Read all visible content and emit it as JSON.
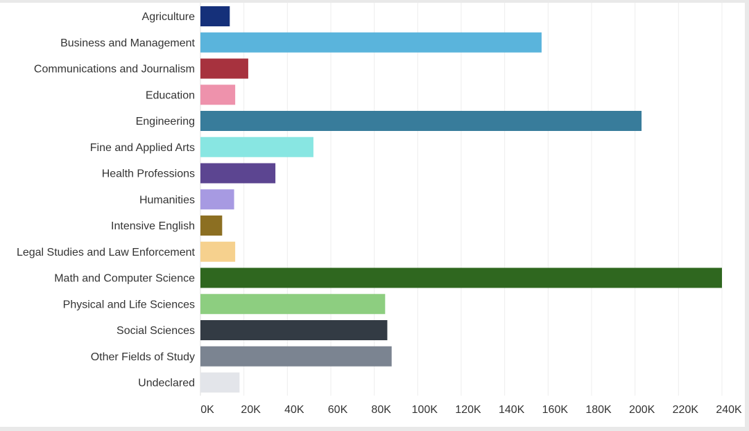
{
  "chart_data": {
    "type": "bar",
    "orientation": "horizontal",
    "title": "",
    "xlabel": "",
    "ylabel": "",
    "xlim": [
      0,
      250000
    ],
    "grid": "vertical",
    "legend": "none",
    "x_ticks": [
      "0K",
      "20K",
      "40K",
      "60K",
      "80K",
      "100K",
      "120K",
      "140K",
      "160K",
      "180K",
      "200K",
      "220K",
      "240K"
    ],
    "x_tick_values": [
      0,
      20000,
      40000,
      60000,
      80000,
      100000,
      120000,
      140000,
      160000,
      180000,
      200000,
      220000,
      240000
    ],
    "categories": [
      "Agriculture",
      "Business and Management",
      "Communications and Journalism",
      "Education",
      "Engineering",
      "Fine and Applied Arts",
      "Health Professions",
      "Humanities",
      "Intensive English",
      "Legal Studies and Law Enforcement",
      "Math and Computer Science",
      "Physical and Life Sciences",
      "Social Sciences",
      "Other Fields of Study",
      "Undeclared"
    ],
    "values": [
      13500,
      157000,
      22000,
      16000,
      203000,
      52000,
      34500,
      15500,
      10000,
      16000,
      240000,
      85000,
      86000,
      88000,
      18000
    ],
    "colors": [
      "#15307a",
      "#5ab4dc",
      "#a7323e",
      "#ee92ac",
      "#387c9b",
      "#88e6e2",
      "#5c4591",
      "#a79ae2",
      "#8c6f22",
      "#f6d18e",
      "#2f671f",
      "#8dce80",
      "#333b44",
      "#7b8491",
      "#e3e5ea"
    ]
  }
}
